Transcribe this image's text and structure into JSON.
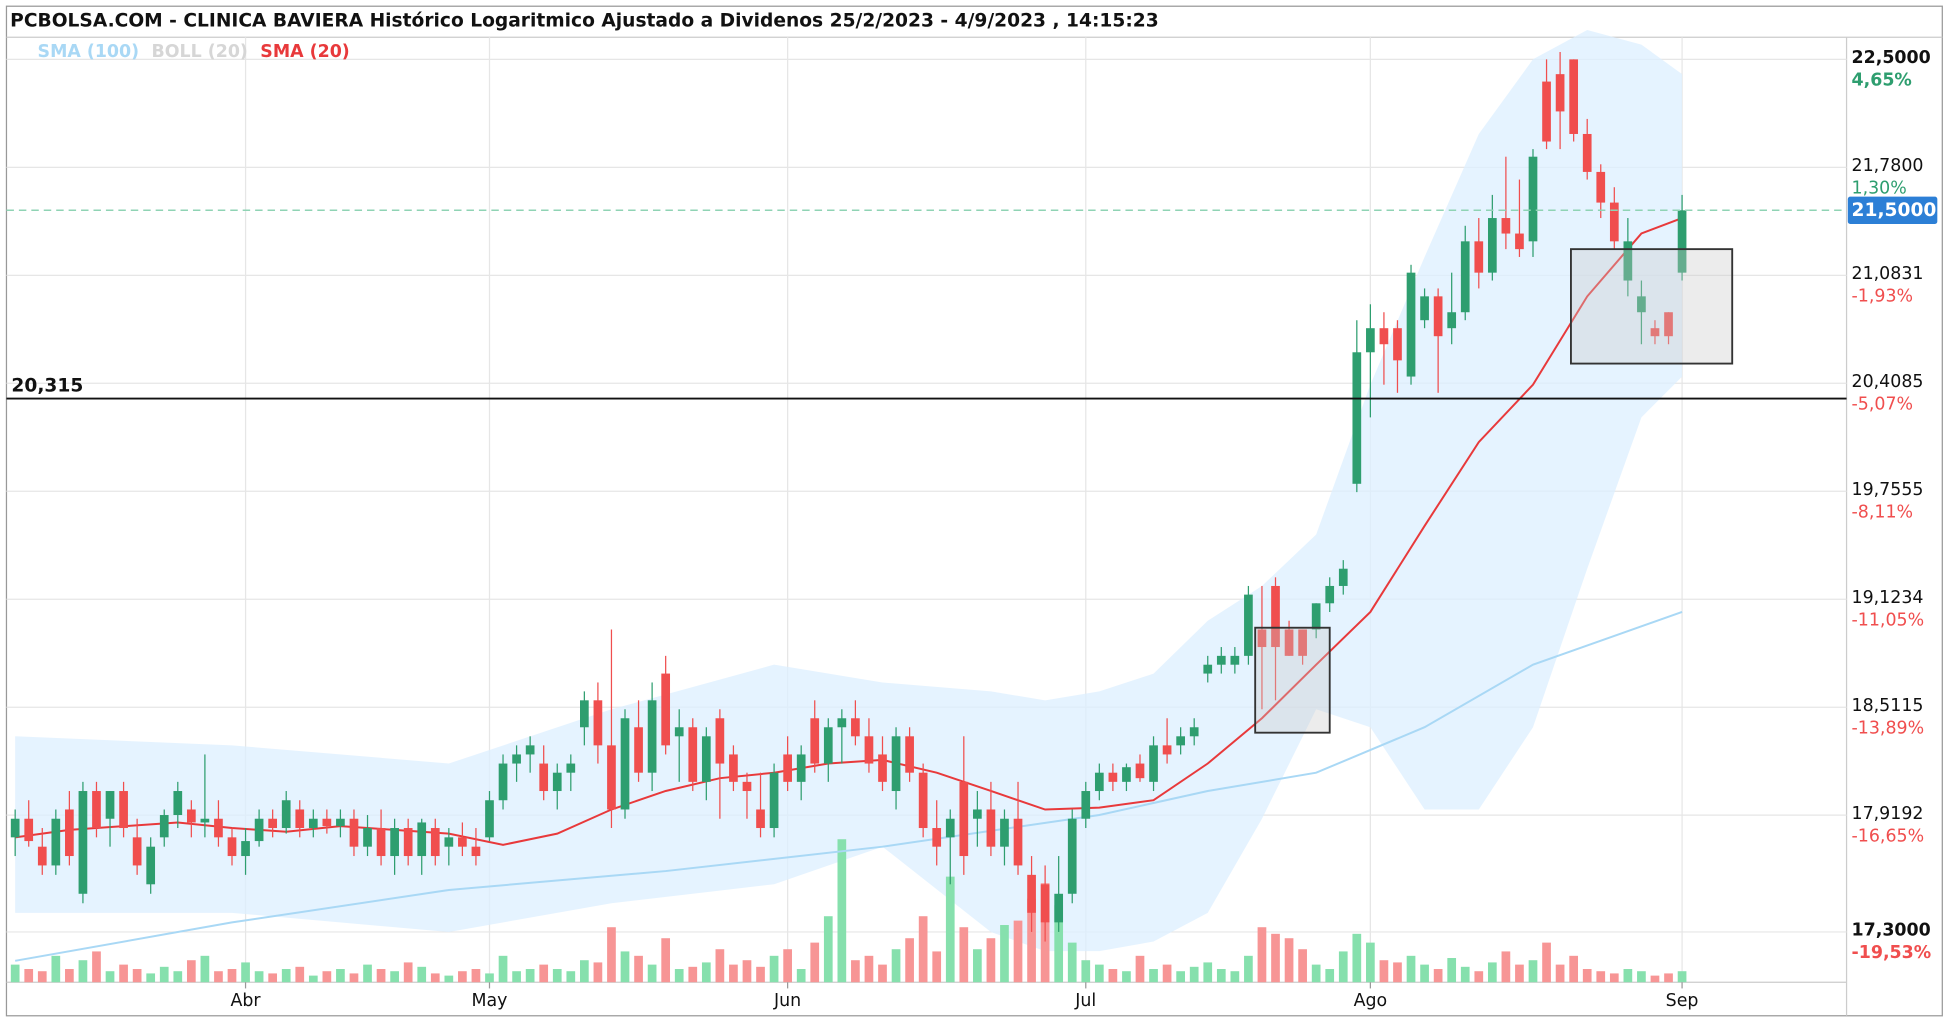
{
  "chart_data": {
    "type": "candlestick",
    "title": "PCBOLSA.COM - CLINICA BAVIERA Histórico Logaritmico Ajustado a Dividenos 25/2/2023 - 4/9/2023 , 14:15:23",
    "log_scale": true,
    "grid": true,
    "up_color": "#2e9e6f",
    "down_color": "#f04e4e",
    "up_volume_color": "#86e0ad",
    "down_volume_color": "#f79595",
    "ylim": [
      17.04,
      22.65
    ],
    "yticks": [
      {
        "value": 22.5,
        "label": "22,5000"
      },
      {
        "value": 21.78,
        "label": "21,7800"
      },
      {
        "value": 21.0831,
        "label": "21,0831"
      },
      {
        "value": 20.4085,
        "label": "20,4085"
      },
      {
        "value": 19.7555,
        "label": "19,7555"
      },
      {
        "value": 19.1234,
        "label": "19,1234"
      },
      {
        "value": 18.5115,
        "label": "18,5115"
      },
      {
        "value": 17.9192,
        "label": "17,9192"
      },
      {
        "value": 17.3,
        "label": "17,3000"
      }
    ],
    "ytick_change_labels": [
      "4,65%",
      "1,30%",
      "-1,93%",
      "-5,07%",
      "-8,11%",
      "-11,05%",
      "-13,89%",
      "-16,65%",
      "-19,53%"
    ],
    "hline": {
      "value": 20.315,
      "label": "20,315"
    },
    "last_price": {
      "value": 21.5,
      "label": "21,5000"
    },
    "categories": [
      null,
      null,
      null,
      null,
      null,
      null,
      null,
      null,
      null,
      null,
      null,
      null,
      null,
      null,
      null,
      null,
      null,
      "Abr",
      null,
      null,
      null,
      null,
      null,
      null,
      null,
      null,
      null,
      null,
      null,
      null,
      null,
      null,
      null,
      null,
      null,
      "May",
      null,
      null,
      null,
      null,
      null,
      null,
      null,
      null,
      null,
      null,
      null,
      null,
      null,
      null,
      null,
      null,
      null,
      null,
      null,
      null,
      null,
      "Jun",
      null,
      null,
      null,
      null,
      null,
      null,
      null,
      null,
      null,
      null,
      null,
      null,
      null,
      null,
      null,
      null,
      null,
      null,
      null,
      null,
      null,
      "Jul",
      null,
      null,
      null,
      null,
      null,
      null,
      null,
      null,
      null,
      null,
      null,
      null,
      null,
      null,
      null,
      null,
      null,
      null,
      null,
      null,
      "Ago",
      null,
      null,
      null,
      null,
      null,
      null,
      null,
      null,
      null,
      null,
      null,
      null,
      null,
      null,
      null,
      null,
      null,
      null,
      null,
      null,
      null,
      null,
      "Sep"
    ],
    "ohlc": [
      [
        17.8,
        17.95,
        17.7,
        17.9
      ],
      [
        17.9,
        18.0,
        17.75,
        17.78
      ],
      [
        17.75,
        17.85,
        17.6,
        17.65
      ],
      [
        17.65,
        17.95,
        17.6,
        17.9
      ],
      [
        17.95,
        18.05,
        17.65,
        17.7
      ],
      [
        17.5,
        18.1,
        17.45,
        18.05
      ],
      [
        18.05,
        18.1,
        17.8,
        17.85
      ],
      [
        17.9,
        18.05,
        17.75,
        18.05
      ],
      [
        18.05,
        18.1,
        17.8,
        17.85
      ],
      [
        17.8,
        17.9,
        17.6,
        17.65
      ],
      [
        17.55,
        17.8,
        17.5,
        17.75
      ],
      [
        17.8,
        17.95,
        17.75,
        17.92
      ],
      [
        17.92,
        18.1,
        17.85,
        18.05
      ],
      [
        17.95,
        18.0,
        17.8,
        17.88
      ],
      [
        17.88,
        18.25,
        17.8,
        17.9
      ],
      [
        17.9,
        18.0,
        17.75,
        17.8
      ],
      [
        17.8,
        17.85,
        17.65,
        17.7
      ],
      [
        17.7,
        17.85,
        17.6,
        17.78
      ],
      [
        17.78,
        17.95,
        17.75,
        17.9
      ],
      [
        17.9,
        17.95,
        17.8,
        17.85
      ],
      [
        17.85,
        18.05,
        17.82,
        18.0
      ],
      [
        17.95,
        18.0,
        17.8,
        17.85
      ],
      [
        17.85,
        17.95,
        17.8,
        17.9
      ],
      [
        17.9,
        17.95,
        17.82,
        17.86
      ],
      [
        17.86,
        17.95,
        17.8,
        17.9
      ],
      [
        17.9,
        17.95,
        17.7,
        17.75
      ],
      [
        17.75,
        17.92,
        17.7,
        17.85
      ],
      [
        17.85,
        17.95,
        17.65,
        17.7
      ],
      [
        17.7,
        17.9,
        17.6,
        17.85
      ],
      [
        17.85,
        17.9,
        17.65,
        17.7
      ],
      [
        17.7,
        17.9,
        17.6,
        17.88
      ],
      [
        17.85,
        17.9,
        17.65,
        17.7
      ],
      [
        17.75,
        17.85,
        17.65,
        17.8
      ],
      [
        17.8,
        17.88,
        17.7,
        17.75
      ],
      [
        17.75,
        17.85,
        17.65,
        17.7
      ],
      [
        17.8,
        18.05,
        17.78,
        18.0
      ],
      [
        18.0,
        18.25,
        17.95,
        18.2
      ],
      [
        18.2,
        18.3,
        18.1,
        18.25
      ],
      [
        18.25,
        18.35,
        18.15,
        18.3
      ],
      [
        18.2,
        18.3,
        18.0,
        18.05
      ],
      [
        18.05,
        18.2,
        17.95,
        18.15
      ],
      [
        18.15,
        18.25,
        18.05,
        18.2
      ],
      [
        18.4,
        18.6,
        18.3,
        18.55
      ],
      [
        18.55,
        18.65,
        18.2,
        18.3
      ],
      [
        18.3,
        18.95,
        17.85,
        17.95
      ],
      [
        17.95,
        18.5,
        17.9,
        18.45
      ],
      [
        18.4,
        18.55,
        18.1,
        18.15
      ],
      [
        18.15,
        18.65,
        18.05,
        18.55
      ],
      [
        18.7,
        18.8,
        18.25,
        18.3
      ],
      [
        18.35,
        18.5,
        18.1,
        18.4
      ],
      [
        18.4,
        18.45,
        18.05,
        18.1
      ],
      [
        18.1,
        18.4,
        18.0,
        18.35
      ],
      [
        18.45,
        18.5,
        17.9,
        18.2
      ],
      [
        18.25,
        18.3,
        18.05,
        18.1
      ],
      [
        18.1,
        18.15,
        17.9,
        18.05
      ],
      [
        17.95,
        18.15,
        17.8,
        17.85
      ],
      [
        17.85,
        18.2,
        17.8,
        18.15
      ],
      [
        18.25,
        18.35,
        18.05,
        18.1
      ],
      [
        18.1,
        18.3,
        18.0,
        18.25
      ],
      [
        18.45,
        18.55,
        18.15,
        18.2
      ],
      [
        18.2,
        18.45,
        18.1,
        18.4
      ],
      [
        18.4,
        18.5,
        18.2,
        18.45
      ],
      [
        18.45,
        18.55,
        18.3,
        18.35
      ],
      [
        18.35,
        18.45,
        18.15,
        18.2
      ],
      [
        18.25,
        18.35,
        18.05,
        18.1
      ],
      [
        18.05,
        18.4,
        17.95,
        18.35
      ],
      [
        18.35,
        18.4,
        18.1,
        18.15
      ],
      [
        18.15,
        18.2,
        17.8,
        17.85
      ],
      [
        17.85,
        18.0,
        17.65,
        17.75
      ],
      [
        17.8,
        17.95,
        17.55,
        17.9
      ],
      [
        18.1,
        18.35,
        17.6,
        17.7
      ],
      [
        17.9,
        18.05,
        17.75,
        17.95
      ],
      [
        17.95,
        18.1,
        17.7,
        17.75
      ],
      [
        17.75,
        17.95,
        17.65,
        17.9
      ],
      [
        17.9,
        18.1,
        17.6,
        17.65
      ],
      [
        17.6,
        17.7,
        17.3,
        17.4
      ],
      [
        17.55,
        17.65,
        17.25,
        17.35
      ],
      [
        17.35,
        17.7,
        17.3,
        17.5
      ],
      [
        17.5,
        17.95,
        17.45,
        17.9
      ],
      [
        17.9,
        18.1,
        17.85,
        18.05
      ],
      [
        18.05,
        18.2,
        18.0,
        18.15
      ],
      [
        18.15,
        18.2,
        18.05,
        18.1
      ],
      [
        18.1,
        18.2,
        18.05,
        18.18
      ],
      [
        18.2,
        18.25,
        18.1,
        18.12
      ],
      [
        18.1,
        18.35,
        18.05,
        18.3
      ],
      [
        18.3,
        18.45,
        18.2,
        18.25
      ],
      [
        18.3,
        18.4,
        18.25,
        18.35
      ],
      [
        18.35,
        18.45,
        18.3,
        18.4
      ],
      [
        18.7,
        18.8,
        18.65,
        18.75
      ],
      [
        18.75,
        18.85,
        18.7,
        18.8
      ],
      [
        18.75,
        18.85,
        18.7,
        18.8
      ],
      [
        18.8,
        19.2,
        18.75,
        19.15
      ],
      [
        18.95,
        19.2,
        18.5,
        18.85
      ],
      [
        19.2,
        19.25,
        18.55,
        18.85
      ],
      [
        18.95,
        19.0,
        18.8,
        18.8
      ],
      [
        18.95,
        18.95,
        18.75,
        18.8
      ],
      [
        18.95,
        19.1,
        18.9,
        19.1
      ],
      [
        19.1,
        19.25,
        19.05,
        19.2
      ],
      [
        19.2,
        19.35,
        19.15,
        19.3
      ],
      [
        19.8,
        20.8,
        19.75,
        20.6
      ],
      [
        20.6,
        20.9,
        20.2,
        20.75
      ],
      [
        20.75,
        20.85,
        20.4,
        20.65
      ],
      [
        20.75,
        20.8,
        20.35,
        20.55
      ],
      [
        20.45,
        21.15,
        20.4,
        21.1
      ],
      [
        20.8,
        21.0,
        20.75,
        20.95
      ],
      [
        20.95,
        21.0,
        20.35,
        20.7
      ],
      [
        20.75,
        21.1,
        20.65,
        20.85
      ],
      [
        20.85,
        21.4,
        20.8,
        21.3
      ],
      [
        21.3,
        21.45,
        21.0,
        21.1
      ],
      [
        21.1,
        21.6,
        21.05,
        21.45
      ],
      [
        21.45,
        21.85,
        21.25,
        21.35
      ],
      [
        21.35,
        21.7,
        21.2,
        21.25
      ],
      [
        21.3,
        21.9,
        21.2,
        21.85
      ],
      [
        22.35,
        22.5,
        21.9,
        21.95
      ],
      [
        22.4,
        22.55,
        21.9,
        22.15
      ],
      [
        22.5,
        22.5,
        21.95,
        22.0
      ],
      [
        22.0,
        22.1,
        21.7,
        21.75
      ],
      [
        21.75,
        21.8,
        21.45,
        21.55
      ],
      [
        21.55,
        21.65,
        21.25,
        21.3
      ],
      [
        21.05,
        21.45,
        20.95,
        21.3
      ],
      [
        20.85,
        21.05,
        20.65,
        20.95
      ],
      [
        20.75,
        20.8,
        20.65,
        20.7
      ],
      [
        20.85,
        20.85,
        20.65,
        20.7
      ],
      [
        21.1,
        21.6,
        21.05,
        21.5
      ]
    ],
    "volume": [
      8,
      6,
      5,
      12,
      6,
      10,
      14,
      5,
      8,
      6,
      4,
      7,
      5,
      10,
      12,
      5,
      6,
      9,
      5,
      4,
      6,
      7,
      3,
      5,
      6,
      4,
      8,
      6,
      5,
      9,
      7,
      4,
      3,
      5,
      6,
      4,
      12,
      5,
      6,
      8,
      6,
      5,
      10,
      9,
      25,
      14,
      12,
      8,
      20,
      6,
      7,
      9,
      15,
      8,
      10,
      7,
      12,
      15,
      6,
      18,
      30,
      65,
      10,
      12,
      8,
      15,
      20,
      30,
      14,
      48,
      25,
      15,
      20,
      26,
      28,
      38,
      45,
      35,
      18,
      10,
      8,
      6,
      5,
      12,
      6,
      8,
      5,
      7,
      9,
      6,
      5,
      12,
      25,
      22,
      20,
      15,
      8,
      6,
      14,
      22,
      18,
      10,
      9,
      12,
      8,
      6,
      11,
      7,
      5,
      9,
      14,
      8,
      10,
      18,
      8,
      12,
      6,
      5,
      4,
      6,
      5,
      3,
      4,
      5
    ],
    "series": [
      {
        "name": "SMA (100)",
        "color": "#a9d8f5",
        "x": [
          0,
          16,
          32,
          48,
          64,
          80,
          88,
          96,
          104,
          112,
          123
        ],
        "values": [
          17.15,
          17.35,
          17.52,
          17.62,
          17.75,
          17.92,
          18.05,
          18.15,
          18.4,
          18.75,
          19.05
        ]
      },
      {
        "name": "BOLL (20)",
        "color": "#d6d6d6",
        "band_color": "#dcefff",
        "x": [
          0,
          16,
          32,
          44,
          56,
          64,
          72,
          76,
          80,
          84,
          88,
          92,
          96,
          100,
          104,
          108,
          112,
          116,
          120,
          123
        ],
        "upper": [
          18.35,
          18.3,
          18.2,
          18.5,
          18.75,
          18.65,
          18.6,
          18.55,
          18.6,
          18.7,
          19.0,
          19.2,
          19.5,
          20.4,
          21.2,
          22.0,
          22.5,
          22.7,
          22.6,
          22.4
        ],
        "lower": [
          17.4,
          17.4,
          17.3,
          17.45,
          17.55,
          17.75,
          17.3,
          17.2,
          17.2,
          17.25,
          17.4,
          17.9,
          18.5,
          18.4,
          17.95,
          17.95,
          18.4,
          19.3,
          20.2,
          20.45
        ]
      },
      {
        "name": "SMA (20)",
        "color": "#e8393b",
        "x": [
          0,
          4,
          8,
          12,
          16,
          20,
          24,
          28,
          32,
          36,
          40,
          44,
          48,
          52,
          56,
          60,
          64,
          68,
          72,
          76,
          80,
          84,
          88,
          92,
          96,
          100,
          104,
          108,
          112,
          116,
          120,
          123
        ],
        "values": [
          17.8,
          17.84,
          17.86,
          17.88,
          17.85,
          17.83,
          17.86,
          17.84,
          17.82,
          17.76,
          17.82,
          17.95,
          18.05,
          18.12,
          18.15,
          18.2,
          18.22,
          18.15,
          18.05,
          17.95,
          17.96,
          18.0,
          18.2,
          18.45,
          18.75,
          19.05,
          19.55,
          20.05,
          20.4,
          20.95,
          21.35,
          21.45
        ]
      }
    ],
    "boxes": [
      {
        "x": [
          91.5,
          97
        ],
        "y": [
          18.37,
          18.96
        ]
      },
      {
        "x": [
          114.8,
          126.7
        ],
        "y": [
          20.53,
          21.25
        ]
      }
    ]
  }
}
